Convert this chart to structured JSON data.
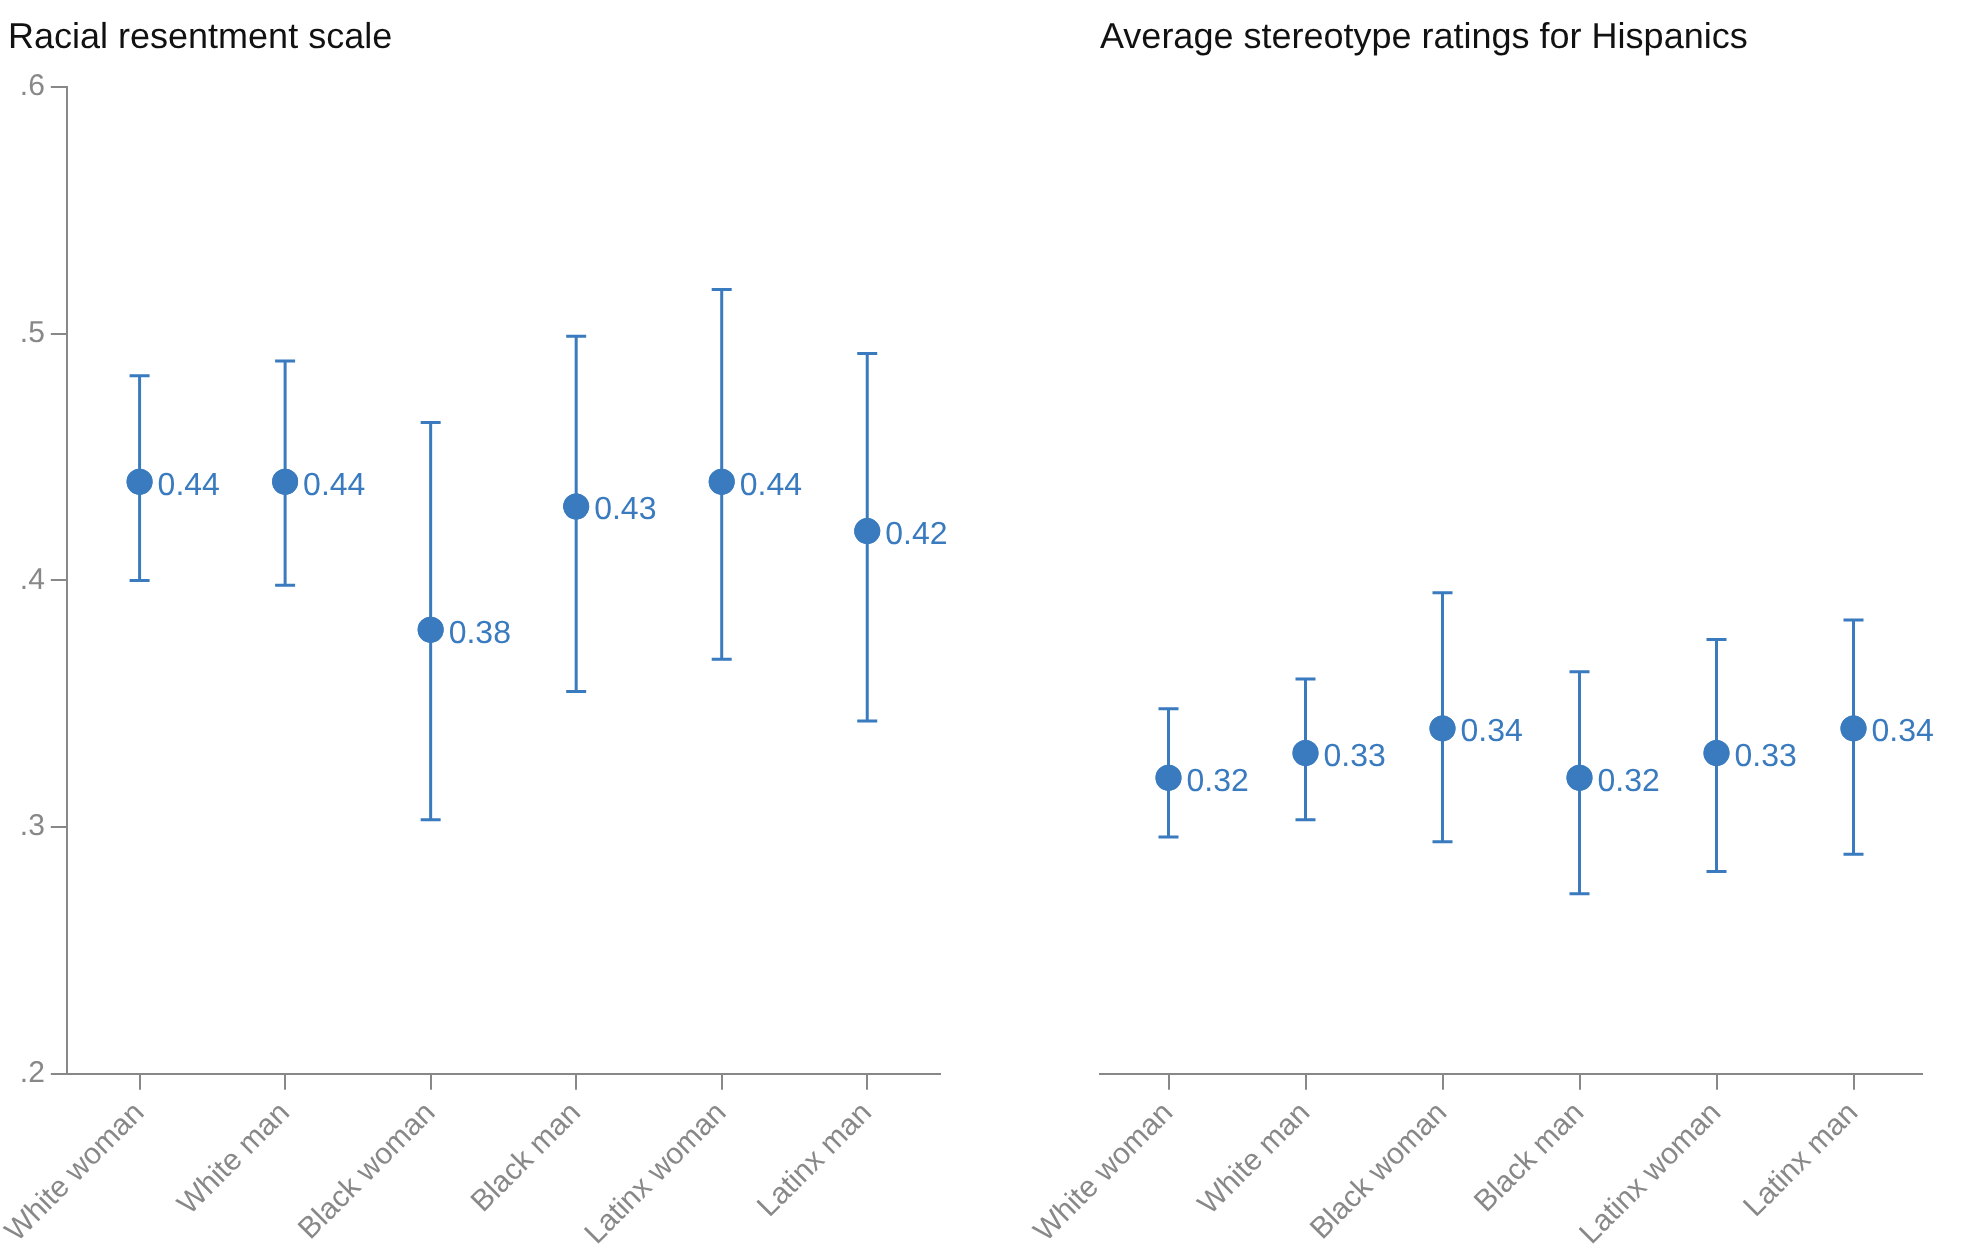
{
  "chart_data": [
    {
      "type": "scatter",
      "title": "Racial resentment scale",
      "categories": [
        "White woman",
        "White man",
        "Black woman",
        "Black man",
        "Latinx woman",
        "Latinx man"
      ],
      "series": [
        {
          "color": "#3a7bbf",
          "values": [
            0.44,
            0.44,
            0.38,
            0.43,
            0.44,
            0.42
          ],
          "errors": [
            [
              0.4,
              0.483
            ],
            [
              0.398,
              0.489
            ],
            [
              0.303,
              0.464
            ],
            [
              0.355,
              0.499
            ],
            [
              0.368,
              0.518
            ],
            [
              0.343,
              0.492
            ]
          ]
        }
      ],
      "ylim": [
        0.2,
        0.6
      ],
      "yticks": [
        {
          "value": 0.2,
          "label": ".2"
        },
        {
          "value": 0.3,
          "label": ".3"
        },
        {
          "value": 0.4,
          "label": ".4"
        },
        {
          "value": 0.5,
          "label": ".5"
        },
        {
          "value": 0.6,
          "label": ".6"
        }
      ],
      "marker": "circle",
      "data_labels": true
    },
    {
      "type": "scatter",
      "title": "Average stereotype ratings for Hispanics",
      "categories": [
        "White woman",
        "White man",
        "Black woman",
        "Black man",
        "Latinx woman",
        "Latinx man"
      ],
      "series": [
        {
          "color": "#3a7bbf",
          "values": [
            0.32,
            0.33,
            0.34,
            0.32,
            0.33,
            0.34
          ],
          "errors": [
            [
              0.296,
              0.348
            ],
            [
              0.303,
              0.36
            ],
            [
              0.294,
              0.395
            ],
            [
              0.273,
              0.363
            ],
            [
              0.282,
              0.376
            ],
            [
              0.289,
              0.384
            ]
          ]
        }
      ],
      "ylim": [
        0.2,
        0.6
      ],
      "marker": "circle",
      "data_labels": true,
      "tick_labels": "x"
    }
  ]
}
